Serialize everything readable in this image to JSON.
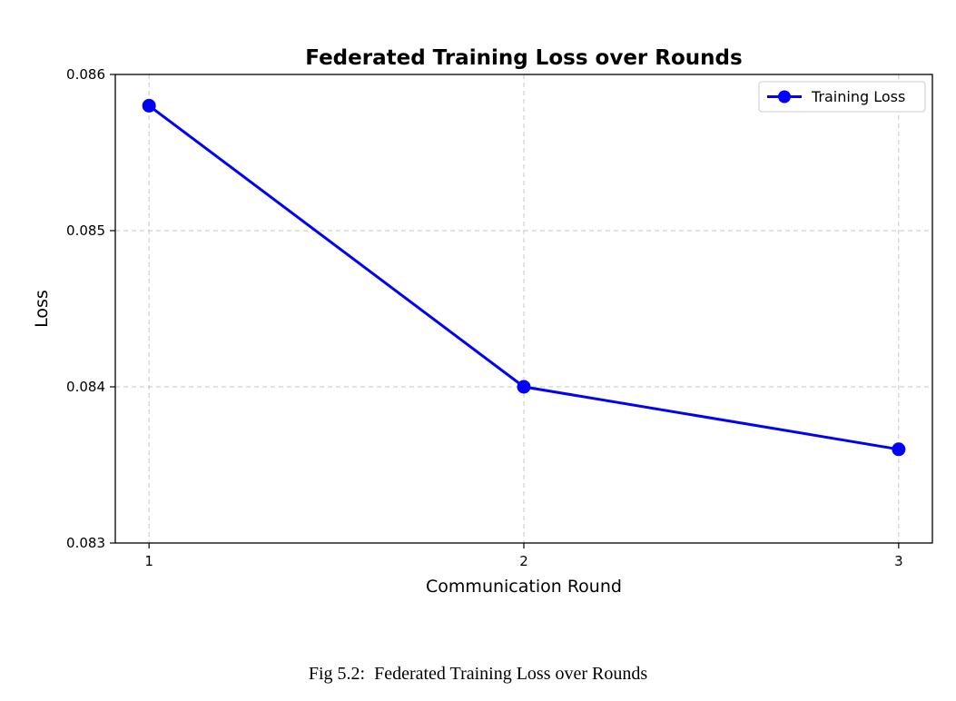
{
  "chart_data": {
    "type": "line",
    "title": "Federated Training Loss over Rounds",
    "xlabel": "Communication Round",
    "ylabel": "Loss",
    "x": [
      1,
      2,
      3
    ],
    "xticks": [
      "1",
      "2",
      "3"
    ],
    "yticks": [
      "0.083",
      "0.084",
      "0.085",
      "0.086"
    ],
    "ylim": [
      0.083,
      0.086
    ],
    "series": [
      {
        "name": "Training Loss",
        "values": [
          0.0858,
          0.084,
          0.0836
        ],
        "color": "#0000ff",
        "marker": "circle"
      }
    ],
    "grid": true,
    "legend_position": "top-right"
  },
  "caption": "Fig 5.2:  Federated Training Loss over Rounds"
}
